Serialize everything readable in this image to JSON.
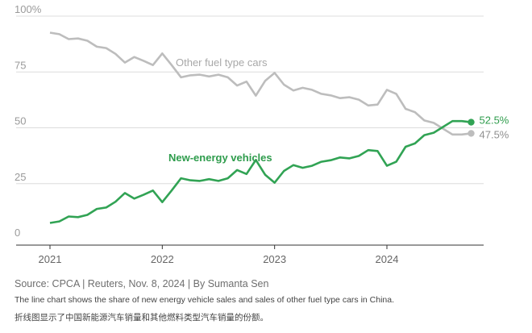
{
  "chart_data": {
    "type": "line",
    "x_axis": {
      "type": "date",
      "ticks": [
        "2021",
        "2022",
        "2023",
        "2024"
      ],
      "range": [
        "2020-10",
        "2024-11"
      ]
    },
    "y_axis": {
      "range": [
        0,
        100
      ],
      "ticks": [
        "0",
        "25",
        "50",
        "75",
        "100%"
      ]
    },
    "grid": "horizontal",
    "series": [
      {
        "name": "Other fuel type cars",
        "color": "#bdbdbd",
        "end_label": "47.5%",
        "points": [
          [
            "2021-01",
            92.6
          ],
          [
            "2021-02",
            91.9
          ],
          [
            "2021-03",
            89.7
          ],
          [
            "2021-04",
            90.0
          ],
          [
            "2021-05",
            89.0
          ],
          [
            "2021-06",
            86.3
          ],
          [
            "2021-07",
            85.7
          ],
          [
            "2021-08",
            83.1
          ],
          [
            "2021-09",
            79.2
          ],
          [
            "2021-10",
            81.7
          ],
          [
            "2021-11",
            80.0
          ],
          [
            "2021-12",
            78.1
          ],
          [
            "2022-01",
            83.3
          ],
          [
            "2022-02",
            78.1
          ],
          [
            "2022-03",
            72.6
          ],
          [
            "2022-04",
            73.5
          ],
          [
            "2022-05",
            73.8
          ],
          [
            "2022-06",
            73.0
          ],
          [
            "2022-07",
            73.8
          ],
          [
            "2022-08",
            72.6
          ],
          [
            "2022-09",
            68.9
          ],
          [
            "2022-10",
            70.7
          ],
          [
            "2022-11",
            64.4
          ],
          [
            "2022-12",
            71.1
          ],
          [
            "2023-01",
            74.6
          ],
          [
            "2023-02",
            69.3
          ],
          [
            "2023-03",
            66.7
          ],
          [
            "2023-04",
            67.9
          ],
          [
            "2023-05",
            67.0
          ],
          [
            "2023-06",
            65.2
          ],
          [
            "2023-07",
            64.5
          ],
          [
            "2023-08",
            63.3
          ],
          [
            "2023-09",
            63.7
          ],
          [
            "2023-10",
            62.6
          ],
          [
            "2023-11",
            60.0
          ],
          [
            "2023-12",
            60.4
          ],
          [
            "2024-01",
            67.0
          ],
          [
            "2024-02",
            65.2
          ],
          [
            "2024-03",
            58.5
          ],
          [
            "2024-04",
            57.0
          ],
          [
            "2024-05",
            53.3
          ],
          [
            "2024-06",
            52.2
          ],
          [
            "2024-07",
            49.6
          ],
          [
            "2024-08",
            47.0
          ],
          [
            "2024-09",
            47.0
          ],
          [
            "2024-10",
            47.5
          ]
        ]
      },
      {
        "name": "New-energy vehicles",
        "color": "#31a354",
        "end_label": "52.5%",
        "points": [
          [
            "2021-01",
            7.4
          ],
          [
            "2021-02",
            8.1
          ],
          [
            "2021-03",
            10.3
          ],
          [
            "2021-04",
            10.0
          ],
          [
            "2021-05",
            11.0
          ],
          [
            "2021-06",
            13.7
          ],
          [
            "2021-07",
            14.3
          ],
          [
            "2021-08",
            16.9
          ],
          [
            "2021-09",
            20.8
          ],
          [
            "2021-10",
            18.3
          ],
          [
            "2021-11",
            20.0
          ],
          [
            "2021-12",
            21.9
          ],
          [
            "2022-01",
            16.7
          ],
          [
            "2022-02",
            21.9
          ],
          [
            "2022-03",
            27.4
          ],
          [
            "2022-04",
            26.5
          ],
          [
            "2022-05",
            26.2
          ],
          [
            "2022-06",
            27.0
          ],
          [
            "2022-07",
            26.2
          ],
          [
            "2022-08",
            27.4
          ],
          [
            "2022-09",
            31.1
          ],
          [
            "2022-10",
            29.3
          ],
          [
            "2022-11",
            35.6
          ],
          [
            "2022-12",
            28.9
          ],
          [
            "2023-01",
            25.4
          ],
          [
            "2023-02",
            30.7
          ],
          [
            "2023-03",
            33.3
          ],
          [
            "2023-04",
            32.1
          ],
          [
            "2023-05",
            33.0
          ],
          [
            "2023-06",
            34.8
          ],
          [
            "2023-07",
            35.5
          ],
          [
            "2023-08",
            36.7
          ],
          [
            "2023-09",
            36.3
          ],
          [
            "2023-10",
            37.4
          ],
          [
            "2023-11",
            40.0
          ],
          [
            "2023-12",
            39.6
          ],
          [
            "2024-01",
            33.0
          ],
          [
            "2024-02",
            34.8
          ],
          [
            "2024-03",
            41.5
          ],
          [
            "2024-04",
            43.0
          ],
          [
            "2024-05",
            46.7
          ],
          [
            "2024-06",
            47.8
          ],
          [
            "2024-07",
            50.4
          ],
          [
            "2024-08",
            53.0
          ],
          [
            "2024-09",
            53.0
          ],
          [
            "2024-10",
            52.5
          ]
        ]
      }
    ]
  },
  "footer": {
    "source": "Source: CPCA | Reuters, Nov. 8, 2024 | By Sumanta Sen",
    "note": "The line chart shows the share of new energy vehicle sales and sales of other fuel type cars in China.",
    "note_cn": "折线图显示了中国新能源汽车销量和其他燃料类型汽车销量的份额。"
  }
}
